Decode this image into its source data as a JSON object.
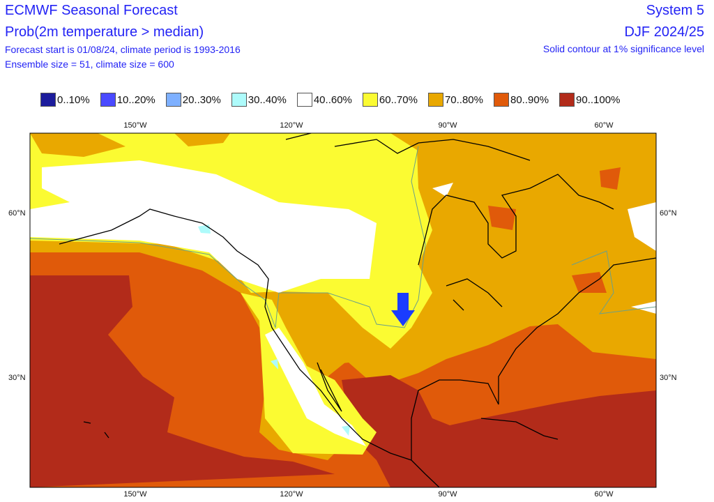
{
  "header": {
    "title": "ECMWF Seasonal Forecast",
    "subtitle": "Prob(2m temperature > median)",
    "line3": "Forecast start is 01/08/24, climate period is 1993-2016",
    "line4": "Ensemble size = 51, climate size = 600",
    "system": "System 5",
    "season": "DJF 2024/25",
    "significance": "Solid contour at 1% significance level"
  },
  "legend": [
    {
      "label": "0..10%",
      "color": "#1c1c9c"
    },
    {
      "label": "10..20%",
      "color": "#4a4aff"
    },
    {
      "label": "20..30%",
      "color": "#7eb0ff"
    },
    {
      "label": "30..40%",
      "color": "#aefbfb"
    },
    {
      "label": "40..60%",
      "color": "#ffffff"
    },
    {
      "label": "60..70%",
      "color": "#fbfb32"
    },
    {
      "label": "70..80%",
      "color": "#e9a800"
    },
    {
      "label": "80..90%",
      "color": "#e05a0a"
    },
    {
      "label": "90..100%",
      "color": "#b22b1a"
    }
  ],
  "axes": {
    "lon_labels": [
      "150°W",
      "120°W",
      "90°W",
      "60°W"
    ],
    "lat_labels": [
      "60°N",
      "30°N"
    ]
  },
  "colors": {
    "text": "#2323f5",
    "arrow": "#1a3cff",
    "coast": "#000000",
    "significance_contour": "#6aa08a"
  },
  "markers": [
    {
      "icon": "down-arrow-icon"
    }
  ]
}
